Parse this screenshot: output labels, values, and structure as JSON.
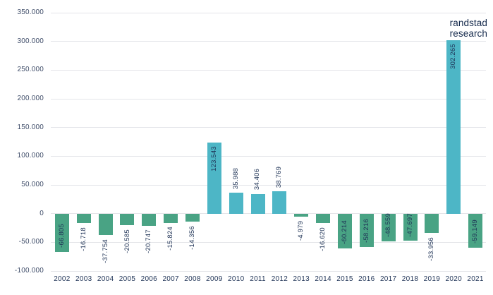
{
  "branding": {
    "line1": "randstad",
    "line2": "research"
  },
  "chart_data": {
    "type": "bar",
    "title": "",
    "xlabel": "",
    "ylabel": "",
    "categories": [
      "2002",
      "2003",
      "2004",
      "2005",
      "2006",
      "2007",
      "2008",
      "2009",
      "2010",
      "2011",
      "2012",
      "2013",
      "2014",
      "2015",
      "2016",
      "2017",
      "2018",
      "2019",
      "2020",
      "2021"
    ],
    "values": [
      -66805,
      -16718,
      -37754,
      -20585,
      -20747,
      -15824,
      -14356,
      123543,
      35988,
      34406,
      38769,
      -4979,
      -16620,
      -60214,
      -58216,
      -48559,
      -47697,
      -33956,
      302265,
      -59149
    ],
    "value_labels": [
      "-66.805",
      "-16.718",
      "-37.754",
      "-20.585",
      "-20.747",
      "-15.824",
      "-14.356",
      "123.543",
      "35.988",
      "34.406",
      "38.769",
      "-4.979",
      "-16.620",
      "-60.214",
      "-58.216",
      "-48.559",
      "-47.697",
      "-33.956",
      "302.265",
      "-59.149"
    ],
    "y_ticks": [
      {
        "label": "350.000",
        "value": 350000
      },
      {
        "label": "300.000",
        "value": 300000
      },
      {
        "label": "250.000",
        "value": 250000
      },
      {
        "label": "200.000",
        "value": 200000
      },
      {
        "label": "150.000",
        "value": 150000
      },
      {
        "label": "100.000",
        "value": 100000
      },
      {
        "label": "50.000",
        "value": 50000
      },
      {
        "label": "0",
        "value": 0
      },
      {
        "label": "-50.000",
        "value": -50000
      },
      {
        "label": "-100.000",
        "value": -100000
      }
    ],
    "ylim": [
      -100000,
      350000
    ],
    "grid": true,
    "legend_position": "none",
    "colors": {
      "positive": "#4db6c6",
      "negative": "#49a384",
      "grid": "#e4e5e9",
      "value_text": "#1f3356",
      "axis_text": "#3e4c68",
      "brand_text": "#14294b",
      "background": "#ffffff"
    }
  }
}
